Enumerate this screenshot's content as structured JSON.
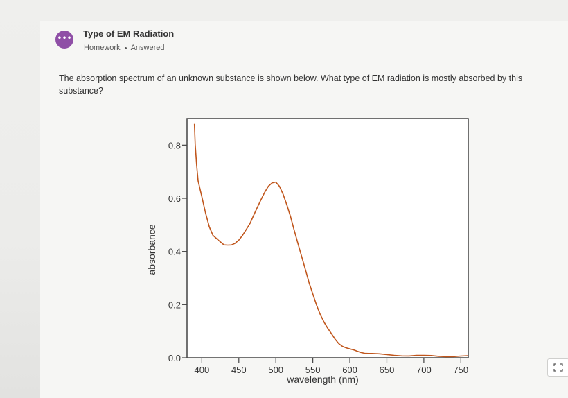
{
  "assignment": {
    "avatar_icon": "more-dots-icon",
    "avatar_color": "#8f4fa6",
    "title": "Type of EM Radiation",
    "category": "Homework",
    "status": "Answered"
  },
  "question": {
    "text": "The absorption spectrum of an unknown substance is shown below. What type of EM radiation is mostly absorbed by this substance?"
  },
  "fullscreen": {
    "icon": "expand-icon"
  },
  "chart_data": {
    "type": "line",
    "title": "",
    "xlabel": "wavelength (nm)",
    "ylabel": "absorbance",
    "xlim": [
      380,
      760
    ],
    "ylim": [
      0.0,
      0.9
    ],
    "xticks": [
      "400",
      "450",
      "500",
      "550",
      "600",
      "650",
      "700",
      "750"
    ],
    "xtick_values": [
      400,
      450,
      500,
      550,
      600,
      650,
      700,
      750
    ],
    "yticks": [
      "0.0",
      "0.2",
      "0.4",
      "0.6",
      "0.8"
    ],
    "ytick_values": [
      0.0,
      0.2,
      0.4,
      0.6,
      0.8
    ],
    "grid": false,
    "line_color": "#c0561c",
    "series": [
      {
        "x": [
          390,
          391,
          393,
          395,
          400,
          405,
          410,
          415,
          420,
          425,
          430,
          435,
          440,
          445,
          450,
          455,
          460,
          465,
          470,
          475,
          480,
          485,
          490,
          495,
          500,
          505,
          510,
          515,
          520,
          525,
          530,
          535,
          540,
          545,
          550,
          555,
          560,
          565,
          570,
          575,
          580,
          585,
          590,
          595,
          600,
          605,
          610,
          615,
          620,
          625,
          630,
          640,
          650,
          660,
          670,
          680,
          690,
          700,
          710,
          720,
          730,
          740,
          750,
          760
        ],
        "y": [
          0.88,
          0.8,
          0.72,
          0.66,
          0.6,
          0.54,
          0.49,
          0.46,
          0.45,
          0.44,
          0.43,
          0.43,
          0.43,
          0.435,
          0.445,
          0.46,
          0.48,
          0.5,
          0.53,
          0.56,
          0.59,
          0.62,
          0.645,
          0.66,
          0.665,
          0.65,
          0.62,
          0.58,
          0.53,
          0.48,
          0.43,
          0.38,
          0.33,
          0.28,
          0.24,
          0.2,
          0.165,
          0.135,
          0.11,
          0.09,
          0.07,
          0.055,
          0.045,
          0.038,
          0.032,
          0.028,
          0.024,
          0.021,
          0.019,
          0.017,
          0.015,
          0.013,
          0.011,
          0.01,
          0.009,
          0.008,
          0.008,
          0.007,
          0.007,
          0.006,
          0.006,
          0.006,
          0.006,
          0.006
        ]
      }
    ]
  }
}
